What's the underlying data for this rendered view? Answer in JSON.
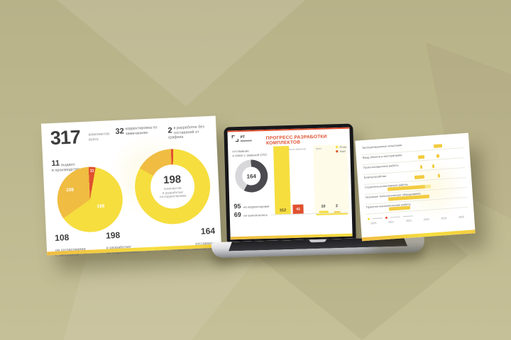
{
  "accent_colors": {
    "yellow": "#F6DE3F",
    "amber": "#F0BC42",
    "orange_red": "#E0502F",
    "dark_gray": "#4B4B4F",
    "light_gray": "#D8D8DA"
  },
  "left_slide": {
    "total_value": "317",
    "total_label": "комплектов\nвсего",
    "corrections_value": "32",
    "corrections_label": "корректировка по замечаниям",
    "ontrack_value": "2",
    "ontrack_label": "в разработке без отставаний от графика",
    "issued_value": "11",
    "issued_label": "выдано\nв производство",
    "pie_labels": {
      "red": "11",
      "amber": "108",
      "yellow": "198"
    },
    "donut_center_value": "198",
    "donut_center_label": "комплектов\nв разработке/\nна корректировке",
    "bottom": [
      {
        "value": "108",
        "label": "на согласовании\nс заказчиком"
      },
      {
        "value": "198",
        "label": "в разработке/\nна корректировке"
      },
      {
        "value": "164",
        "label": "отставание\nв связи с заменой ОТО"
      }
    ]
  },
  "laptop": {
    "logo_text": "РТ",
    "title": "ПРОГРЕСС РАЗРАБОТКИ КОМПЛЕКТОВ",
    "left_caption": "отставание\nв связи с заменой ОТО",
    "donut_value": "164",
    "stats": [
      {
        "value": "95",
        "label": "на корректировке"
      },
      {
        "value": "69",
        "label": "не выполнялись"
      }
    ],
    "col_headers": [
      "число проектов",
      "факт"
    ],
    "legend": [
      {
        "label": "План",
        "color": "#F6DE3F"
      },
      {
        "label": "Факт",
        "color": "#E0502F"
      }
    ],
    "bar_values": {
      "plan1": "312",
      "fact1": "43",
      "plan2": "10",
      "fact2": "2"
    }
  },
  "chart_data": [
    {
      "id": "kits-pie",
      "type": "pie",
      "title": "317 комплектов всего",
      "labels": [
        "выдано в производство",
        "в разработке/на корректировке",
        "на согласовании с заказчиком"
      ],
      "values": [
        11,
        198,
        108
      ],
      "colors": [
        "#E0502F",
        "#F6DE3F",
        "#F0BC42"
      ]
    },
    {
      "id": "kits-donut",
      "type": "pie",
      "title": "198 комплектов в разработке/на корректировке",
      "labels": [
        "в разработке без отставаний от графика",
        "отставание в связи с заменой ОТО",
        "корректировка по замечаниям"
      ],
      "values": [
        2,
        164,
        32
      ],
      "colors": [
        "#E0502F",
        "#F6DE3F",
        "#F0BC42"
      ]
    },
    {
      "id": "lag-donut",
      "type": "pie",
      "title": "164 отставание в связи с заменой ОТО",
      "labels": [
        "на корректировке",
        "не выполнялись"
      ],
      "values": [
        95,
        69
      ],
      "colors": [
        "#4B4B4F",
        "#D8D8DA"
      ]
    },
    {
      "id": "kit-progress-bars",
      "type": "bar",
      "title": "ПРОГРЕСС РАЗРАБОТКИ КОМПЛЕКТОВ",
      "legend_entries": [
        "План",
        "Факт"
      ],
      "max": 312,
      "groups": [
        {
          "plan": 312,
          "fact": 43
        },
        {
          "plan": 10,
          "fact": 2
        }
      ]
    },
    {
      "id": "schedule-gantt",
      "type": "table",
      "title": "календарный график работ",
      "years": [
        "2020",
        "2021",
        "2022",
        "2023",
        "2024",
        "2025"
      ],
      "rows": [
        {
          "label": "Эксплуатационные испытания",
          "bars": [
            {
              "start": 0.71,
              "width": 0.08,
              "light": false
            }
          ]
        },
        {
          "label": "Ввод объекта в эксплуатацию",
          "bars": [
            {
              "start": 0.55,
              "width": 0.06,
              "light": false
            },
            {
              "start": 0.73,
              "width": 0.03,
              "light": false
            }
          ]
        },
        {
          "label": "Пуско-наладочные работы",
          "bars": [
            {
              "start": 0.56,
              "width": 0.02,
              "light": false
            },
            {
              "start": 0.68,
              "width": 0.02,
              "light": false
            }
          ]
        },
        {
          "label": "Благоустройство",
          "bars": [
            {
              "start": 0.5,
              "width": 0.1,
              "light": false
            },
            {
              "start": 0.73,
              "width": 0.02,
              "light": false
            }
          ]
        },
        {
          "label": "Строительно-монтажные работы",
          "bars": [
            {
              "start": 0.23,
              "width": 0.37,
              "light": false
            },
            {
              "start": 0.6,
              "width": 0.05,
              "light": true
            }
          ]
        },
        {
          "label": "Основное технологическое оборудование",
          "bars": [
            {
              "start": 0.23,
              "width": 0.4,
              "light": false
            }
          ]
        },
        {
          "label": "Проектно-изыскательские работы",
          "bars": [
            {
              "start": 0.23,
              "width": 0.21,
              "light": false
            }
          ]
        }
      ]
    }
  ]
}
